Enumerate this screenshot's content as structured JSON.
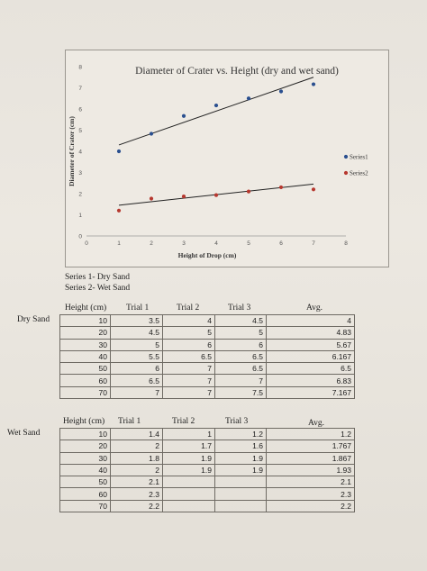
{
  "chart_data": {
    "type": "scatter",
    "title": "Diameter of Crater vs. Height (dry and wet sand)",
    "xlabel": "Height of Drop (cm)",
    "ylabel": "Diameter of Crater (cm)",
    "xlim": [
      0,
      8
    ],
    "ylim": [
      0,
      8
    ],
    "x_ticks": [
      "0",
      "1",
      "2",
      "3",
      "4",
      "5",
      "6",
      "7",
      "8"
    ],
    "y_ticks": [
      "0",
      "1",
      "2",
      "3",
      "4",
      "5",
      "6",
      "7",
      "8"
    ],
    "legend_position": "right",
    "trendlines": true,
    "series": [
      {
        "name": "Series1",
        "color": "#2a4f8f",
        "x": [
          1,
          2,
          3,
          4,
          5,
          6,
          7
        ],
        "y": [
          4,
          4.83,
          5.67,
          6.167,
          6.5,
          6.83,
          7.167
        ],
        "trend": [
          [
            1,
            4.3
          ],
          [
            7,
            7.5
          ]
        ]
      },
      {
        "name": "Series2",
        "color": "#b6382f",
        "x": [
          1,
          2,
          3,
          4,
          5,
          6,
          7
        ],
        "y": [
          1.2,
          1.767,
          1.867,
          1.93,
          2.1,
          2.3,
          2.2
        ],
        "trend": [
          [
            1,
            1.45
          ],
          [
            7,
            2.45
          ]
        ]
      }
    ]
  },
  "notes": {
    "line1": "Series 1- Dry Sand",
    "line2": "Series 2- Wet Sand"
  },
  "dry_table": {
    "label": "Dry Sand",
    "headers": [
      "Height (cm)",
      "Trial 1",
      "Trial 2",
      "Trial 3",
      "Avg."
    ],
    "rows": [
      [
        "10",
        "3.5",
        "4",
        "4.5",
        "4"
      ],
      [
        "20",
        "4.5",
        "5",
        "5",
        "4.83"
      ],
      [
        "30",
        "5",
        "6",
        "6",
        "5.67"
      ],
      [
        "40",
        "5.5",
        "6.5",
        "6.5",
        "6.167"
      ],
      [
        "50",
        "6",
        "7",
        "6.5",
        "6.5"
      ],
      [
        "60",
        "6.5",
        "7",
        "7",
        "6.83"
      ],
      [
        "70",
        "7",
        "7",
        "7.5",
        "7.167"
      ]
    ]
  },
  "wet_table": {
    "label": "Wet Sand",
    "headers": [
      "Height (cm)",
      "Trial 1",
      "Trial 2",
      "Trial 3",
      "Avg."
    ],
    "rows": [
      [
        "10",
        "1.4",
        "1",
        "1.2",
        "1.2"
      ],
      [
        "20",
        "2",
        "1.7",
        "1.6",
        "1.767"
      ],
      [
        "30",
        "1.8",
        "1.9",
        "1.9",
        "1.867"
      ],
      [
        "40",
        "2",
        "1.9",
        "1.9",
        "1.93"
      ],
      [
        "50",
        "2.1",
        "",
        "",
        "2.1"
      ],
      [
        "60",
        "2.3",
        "",
        "",
        "2.3"
      ],
      [
        "70",
        "2.2",
        "",
        "",
        "2.2"
      ]
    ]
  }
}
